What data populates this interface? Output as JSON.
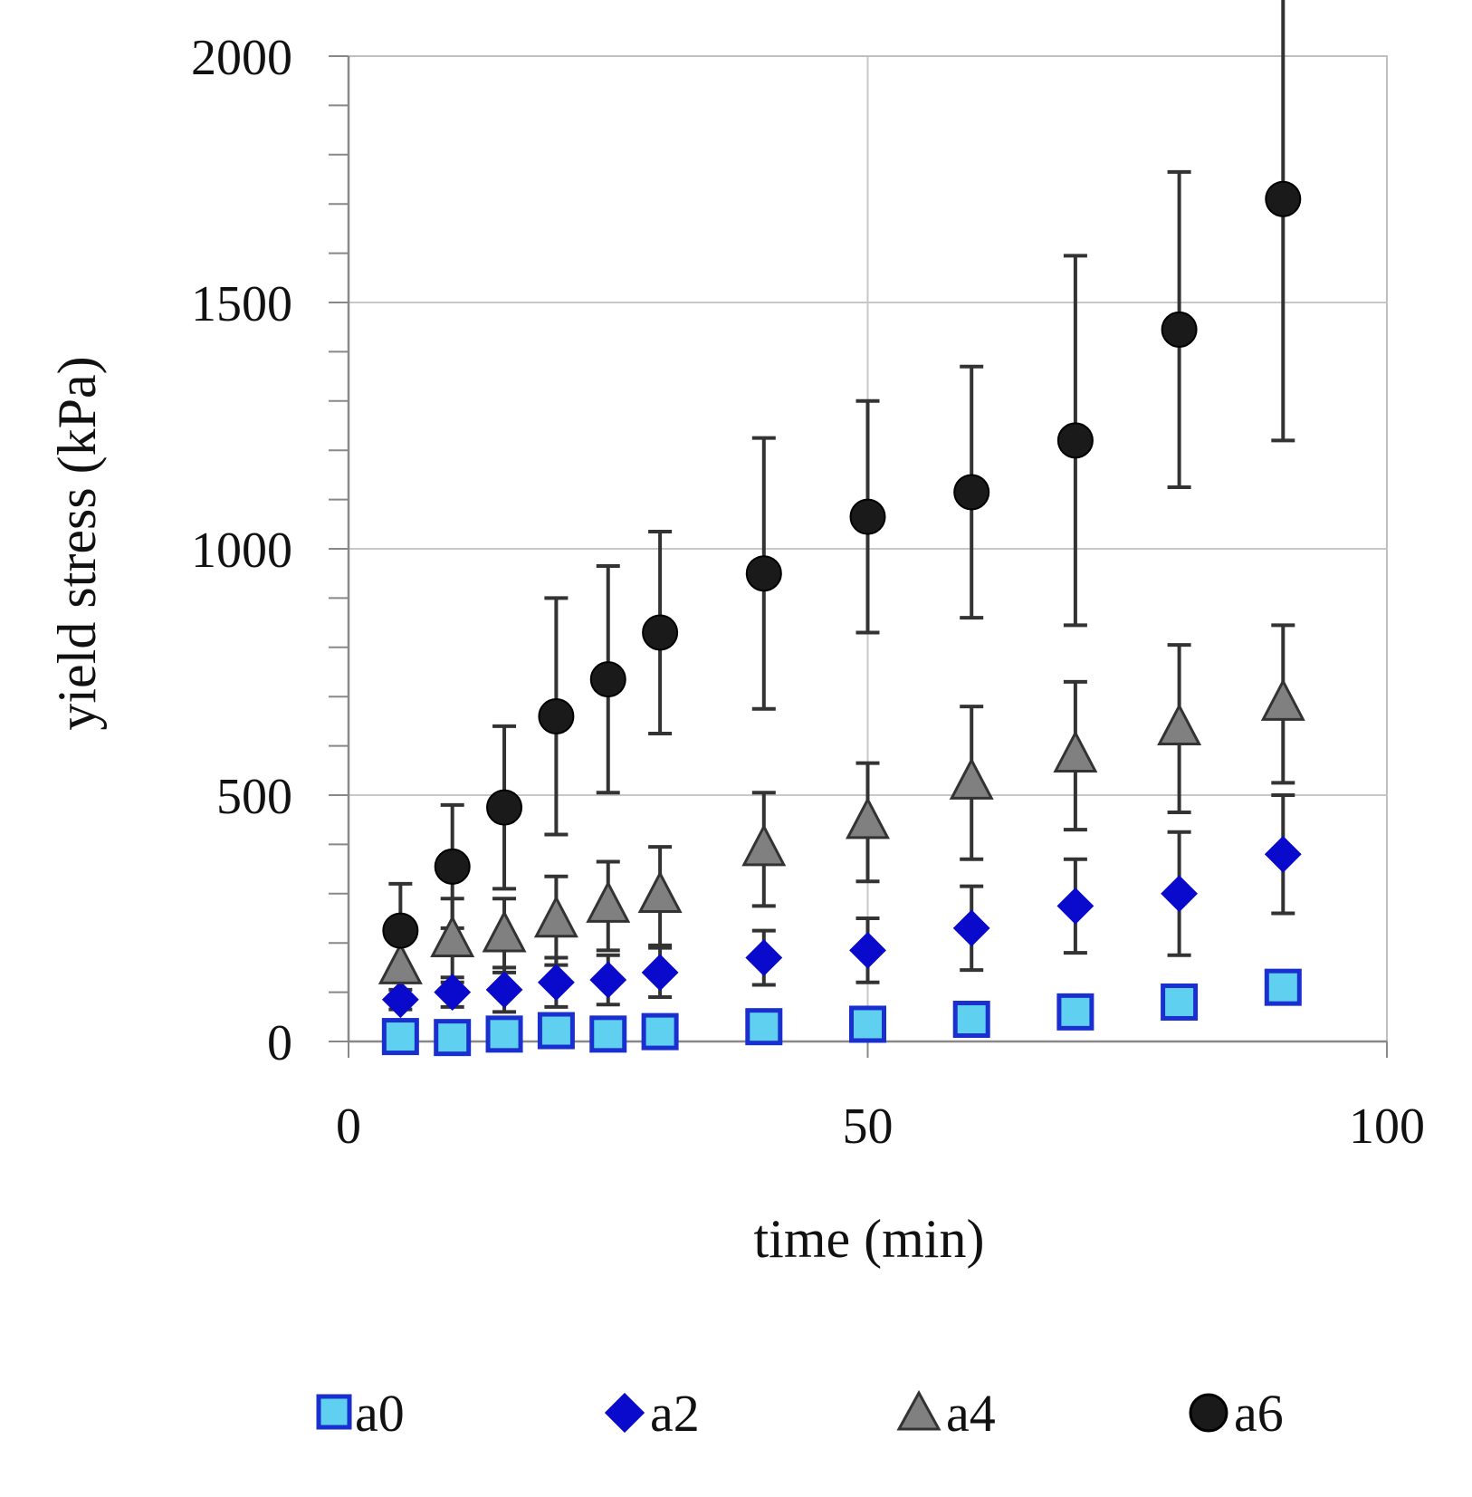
{
  "chart_data": {
    "type": "scatter",
    "title": "",
    "xlabel": "time (min)",
    "ylabel": "yield stress (kPa)",
    "xlim": [
      0,
      100
    ],
    "ylim": [
      0,
      2000
    ],
    "xticks": [
      0,
      50,
      100
    ],
    "yticks": [
      0,
      500,
      1000,
      1500,
      2000
    ],
    "y_minor_step": 100,
    "grid": true,
    "legend_position": "bottom",
    "series": [
      {
        "name": "a0",
        "marker": "square",
        "fill": "#5fd0f0",
        "stroke": "#1a2fd0",
        "x": [
          5,
          10,
          15,
          20,
          25,
          30,
          40,
          50,
          60,
          70,
          80,
          90
        ],
        "y": [
          10,
          8,
          15,
          22,
          15,
          20,
          30,
          35,
          45,
          60,
          80,
          110
        ],
        "err": []
      },
      {
        "name": "a2",
        "marker": "diamond",
        "fill": "#0a0acc",
        "stroke": "#0a0acc",
        "x": [
          5,
          10,
          15,
          20,
          25,
          30,
          40,
          50,
          60,
          70,
          80,
          90
        ],
        "y": [
          85,
          100,
          105,
          120,
          125,
          140,
          170,
          185,
          230,
          275,
          300,
          380
        ],
        "err": [
          20,
          30,
          45,
          50,
          50,
          50,
          55,
          65,
          85,
          95,
          125,
          120
        ]
      },
      {
        "name": "a4",
        "marker": "triangle",
        "fill": "#808080",
        "stroke": "#333333",
        "x": [
          5,
          10,
          15,
          20,
          25,
          30,
          40,
          50,
          60,
          70,
          80,
          90
        ],
        "y": [
          150,
          205,
          215,
          245,
          275,
          295,
          390,
          445,
          525,
          580,
          635,
          685
        ],
        "err": [
          55,
          85,
          75,
          90,
          90,
          100,
          115,
          120,
          155,
          150,
          170,
          160
        ]
      },
      {
        "name": "a6",
        "marker": "circle",
        "fill": "#1a1a1a",
        "stroke": "#000000",
        "x": [
          5,
          10,
          15,
          20,
          25,
          30,
          40,
          50,
          60,
          70,
          80,
          90
        ],
        "y": [
          225,
          355,
          475,
          660,
          735,
          830,
          950,
          1065,
          1115,
          1220,
          1445,
          1710
        ],
        "err": [
          95,
          125,
          165,
          240,
          230,
          205,
          275,
          235,
          255,
          375,
          320,
          490
        ]
      }
    ]
  }
}
